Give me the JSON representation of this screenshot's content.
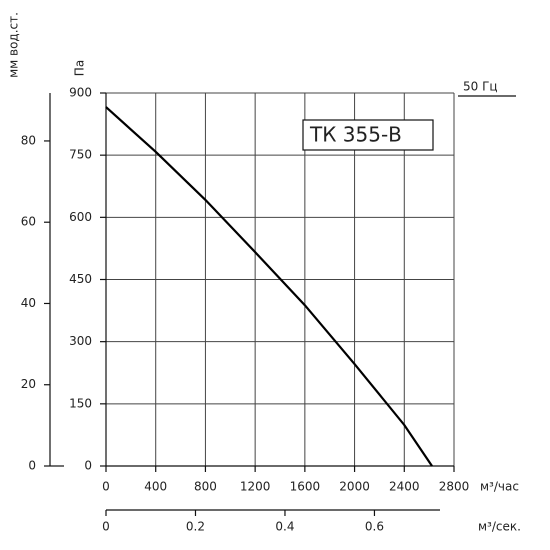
{
  "chart_data": {
    "type": "line",
    "label_box": "ТК 355-В",
    "frequency": "50 Гц",
    "ylabel": "Па",
    "y2label": "мм вод.ст.",
    "xlabel": "м³/час",
    "x2label": "м³/сек.",
    "x": [
      0,
      400,
      800,
      1200,
      1600,
      2000,
      2400,
      2623
    ],
    "values": [
      866,
      758,
      642,
      516,
      388,
      246,
      99,
      0
    ],
    "color": "#000000",
    "grid": true,
    "xlim": [
      0,
      2800
    ],
    "xticks": [
      0,
      400,
      800,
      1200,
      1600,
      2000,
      2400,
      2800
    ],
    "ylim": [
      0,
      900
    ],
    "yticks": [
      0,
      150,
      300,
      450,
      600,
      750,
      900
    ],
    "y2lim": [
      0,
      91.8
    ],
    "y2ticks": [
      0,
      20,
      40,
      60,
      80
    ],
    "x2lim": [
      0,
      0.7778
    ],
    "x2ticks": [
      0,
      0.2,
      0.4,
      0.6
    ]
  }
}
